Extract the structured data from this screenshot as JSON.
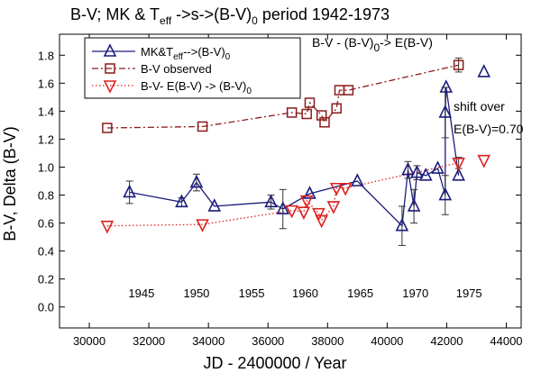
{
  "chart_data": {
    "type": "scatter",
    "title": {
      "prefix": "B-V;  MK & T",
      "sub1": "eff",
      "mid": " ->s->(B-V)",
      "sub2": "0",
      "suffix": " period 1942-1973"
    },
    "xlabel": "JD - 2400000 /  Year",
    "ylabel": "B-V,  Delta (B-V)",
    "xlim": [
      29000,
      44500
    ],
    "ylim": [
      -0.15,
      1.95
    ],
    "x_ticks": [
      30000,
      32000,
      34000,
      36000,
      38000,
      40000,
      42000,
      44000
    ],
    "y_ticks": [
      0.0,
      0.2,
      0.4,
      0.6,
      0.8,
      1.0,
      1.2,
      1.4,
      1.6,
      1.8
    ],
    "y_tick_labels": [
      "0.0",
      "0.2",
      "0.4",
      "0.6",
      "0.8",
      "1.0",
      "1.2",
      "1.4",
      "1.6",
      "1.8"
    ],
    "year_labels": [
      {
        "label": "1945",
        "jd": 31750
      },
      {
        "label": "1950",
        "jd": 33600
      },
      {
        "label": "1955",
        "jd": 35450
      },
      {
        "label": "1960",
        "jd": 37250
      },
      {
        "label": "1965",
        "jd": 39100
      },
      {
        "label": "1970",
        "jd": 40950
      },
      {
        "label": "1975",
        "jd": 42750
      }
    ],
    "annotations": {
      "top_right": {
        "prefix": "B-V - (B-V)",
        "sub": "0",
        "suffix": "-> E(B-V)"
      },
      "shift_line1": "shift over",
      "shift_line2": "E(B-V)=0.70"
    },
    "series": [
      {
        "name": "MK&Teff-->(B-V)0",
        "legend": {
          "prefix": "MK&T",
          "sub1": "eff",
          "mid": "-->(B-V)",
          "sub2": "0"
        },
        "color": "#1c1c7e",
        "marker": "triangle-up",
        "line": "solid",
        "points": [
          {
            "x": 31350,
            "y": 0.82,
            "err": 0.08
          },
          {
            "x": 33100,
            "y": 0.75,
            "err": 0.03
          },
          {
            "x": 33600,
            "y": 0.89,
            "err": 0.06
          },
          {
            "x": 34200,
            "y": 0.72
          },
          {
            "x": 36100,
            "y": 0.75,
            "err": 0.05
          },
          {
            "x": 36500,
            "y": 0.7,
            "err": 0.14
          },
          {
            "x": 37400,
            "y": 0.81
          },
          {
            "x": 39000,
            "y": 0.9
          },
          {
            "x": 40500,
            "y": 0.58,
            "err": 0.14
          },
          {
            "x": 40700,
            "y": 0.98,
            "err": 0.06
          },
          {
            "x": 40900,
            "y": 0.72,
            "err": 0.12
          },
          {
            "x": 41000,
            "y": 0.96,
            "err": 0.05
          },
          {
            "x": 41300,
            "y": 0.94
          },
          {
            "x": 41700,
            "y": 0.99
          },
          {
            "x": 41950,
            "y": 0.8,
            "err": 0.14
          },
          {
            "x": 41950,
            "y": 1.39,
            "err": 0.18
          },
          {
            "x": 41980,
            "y": 1.57
          },
          {
            "x": 42400,
            "y": 0.94
          }
        ]
      },
      {
        "name": "B-V observed",
        "legend": {
          "text": "B-V observed"
        },
        "color": "#8b1a1a",
        "marker": "square",
        "line": "dash-dot",
        "points": [
          {
            "x": 30600,
            "y": 1.28
          },
          {
            "x": 33800,
            "y": 1.29
          },
          {
            "x": 36800,
            "y": 1.39
          },
          {
            "x": 37300,
            "y": 1.38
          },
          {
            "x": 37400,
            "y": 1.46
          },
          {
            "x": 37800,
            "y": 1.37
          },
          {
            "x": 37900,
            "y": 1.32
          },
          {
            "x": 38300,
            "y": 1.42
          },
          {
            "x": 38400,
            "y": 1.55
          },
          {
            "x": 38700,
            "y": 1.55
          },
          {
            "x": 42400,
            "y": 1.73,
            "err": 0.05
          }
        ]
      },
      {
        "name": "B-V- E(B-V) -> (B-V)0",
        "legend": {
          "prefix": "B-V- E(B-V) -> (B-V)",
          "sub": "0"
        },
        "color": "#e02020",
        "marker": "triangle-down",
        "line": "dotted",
        "points": [
          {
            "x": 30600,
            "y": 0.58
          },
          {
            "x": 33800,
            "y": 0.59
          },
          {
            "x": 36800,
            "y": 0.69
          },
          {
            "x": 37200,
            "y": 0.68
          },
          {
            "x": 37300,
            "y": 0.76
          },
          {
            "x": 37700,
            "y": 0.67
          },
          {
            "x": 37800,
            "y": 0.62
          },
          {
            "x": 38200,
            "y": 0.72
          },
          {
            "x": 38300,
            "y": 0.85
          },
          {
            "x": 38600,
            "y": 0.85
          },
          {
            "x": 42400,
            "y": 1.03,
            "err": 0.04
          }
        ]
      }
    ],
    "extra_markers": [
      {
        "series_index": 0,
        "x": 43250,
        "y": 1.68
      },
      {
        "series_index": 2,
        "x": 43250,
        "y": 1.05
      }
    ]
  }
}
